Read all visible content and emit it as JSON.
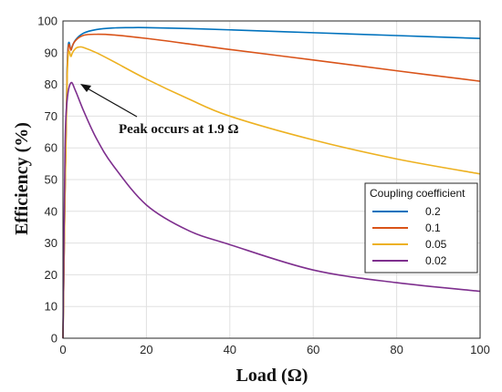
{
  "chart_data": {
    "type": "line",
    "xlabel": "Load (Ω)",
    "ylabel": "Efficiency (%)",
    "xlim": [
      0,
      100
    ],
    "ylim": [
      0,
      100
    ],
    "xticks": [
      0,
      20,
      40,
      60,
      80,
      100
    ],
    "yticks": [
      0,
      10,
      20,
      30,
      40,
      50,
      60,
      70,
      80,
      90,
      100
    ],
    "grid": true,
    "legend": {
      "title": "Coupling coefficient",
      "placement": "lower-right"
    },
    "annotation": {
      "text": "Peak occurs at 1.9 Ω",
      "x": 1.9,
      "y": 80.5
    },
    "series": [
      {
        "name": "0.2",
        "color": "#0072BD",
        "x": [
          0,
          1,
          2,
          3,
          5,
          8,
          12,
          16,
          20,
          30,
          40,
          60,
          80,
          100
        ],
        "y": [
          0,
          85,
          91,
          94,
          96.2,
          97.3,
          97.8,
          97.9,
          97.9,
          97.6,
          97.2,
          96.3,
          95.4,
          94.5
        ]
      },
      {
        "name": "0.1",
        "color": "#D95319",
        "x": [
          0,
          1,
          2,
          3,
          5,
          8,
          12,
          20,
          30,
          40,
          60,
          80,
          100
        ],
        "y": [
          0,
          84,
          91,
          93.8,
          95.5,
          95.8,
          95.6,
          94.5,
          92.8,
          91.0,
          87.7,
          84.3,
          81.0
        ]
      },
      {
        "name": "0.05",
        "color": "#EDB120",
        "x": [
          0,
          1,
          2,
          3,
          4,
          5,
          8,
          12,
          20,
          30,
          40,
          60,
          80,
          100
        ],
        "y": [
          0,
          82,
          89,
          91.3,
          91.8,
          91.6,
          90.0,
          87.3,
          81.7,
          75.5,
          70.0,
          62.5,
          56.5,
          51.8
        ]
      },
      {
        "name": "0.02",
        "color": "#7E2F8E",
        "x": [
          0,
          0.5,
          1,
          1.9,
          3,
          5,
          8,
          12,
          20,
          30,
          40,
          60,
          80,
          100
        ],
        "y": [
          0,
          60,
          75,
          80.5,
          78,
          71.5,
          63,
          54.5,
          42,
          34,
          29.5,
          21.5,
          17.5,
          14.8
        ]
      }
    ]
  }
}
